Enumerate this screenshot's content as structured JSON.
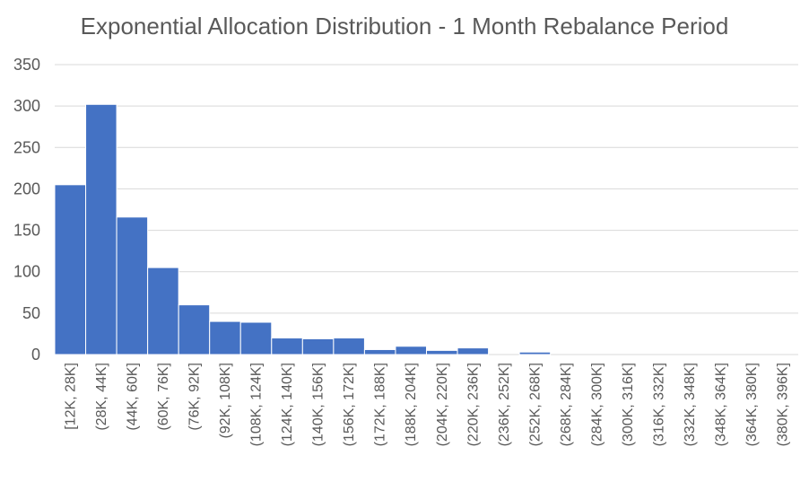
{
  "chart_data": {
    "type": "bar",
    "title": "Exponential Allocation Distribution - 1 Month Rebalance Period",
    "xlabel": "",
    "ylabel": "",
    "ylim": [
      0,
      350
    ],
    "yticks": [
      0,
      50,
      100,
      150,
      200,
      250,
      300,
      350
    ],
    "grid": true,
    "legend": "none",
    "bar_color": "#4472c4",
    "categories": [
      "[12K, 28K]",
      "(28K, 44K]",
      "(44K, 60K]",
      "(60K, 76K]",
      "(76K, 92K]",
      "(92K, 108K]",
      "(108K, 124K]",
      "(124K, 140K]",
      "(140K, 156K]",
      "(156K, 172K]",
      "(172K, 188K]",
      "(188K, 204K]",
      "(204K, 220K]",
      "(220K, 236K]",
      "(236K, 252K]",
      "(252K, 268K]",
      "(268K, 284K]",
      "(284K, 300K]",
      "(300K, 316K]",
      "(316K, 332K]",
      "(332K, 348K]",
      "(348K, 364K]",
      "(364K, 380K]",
      "(380K, 396K]"
    ],
    "values": [
      205,
      302,
      166,
      105,
      60,
      40,
      39,
      20,
      19,
      20,
      6,
      10,
      5,
      8,
      0,
      3,
      0,
      0,
      0,
      0,
      0,
      0,
      0,
      0
    ]
  }
}
